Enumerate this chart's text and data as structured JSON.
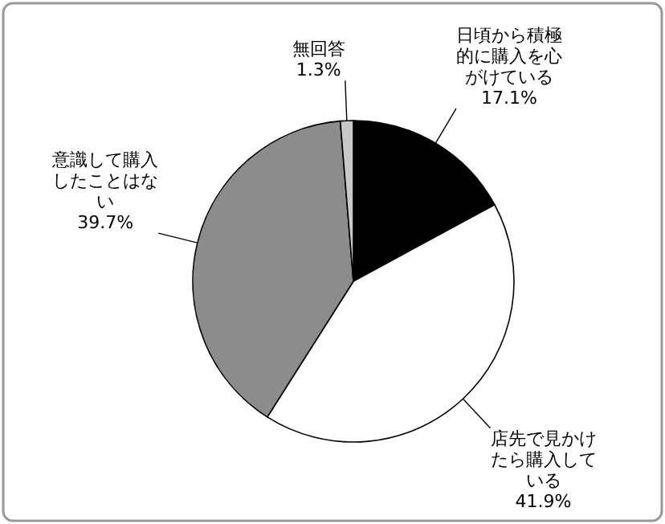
{
  "chart_data": {
    "type": "pie",
    "categories": [
      "日頃から積極的に購入を心がけている",
      "店先で見かけたら購入している",
      "意識して購入したことはない",
      "無回答"
    ],
    "values": [
      17.1,
      41.9,
      39.7,
      1.3
    ],
    "value_labels": [
      "17.1%",
      "41.9%",
      "39.7%",
      "1.3%"
    ],
    "colors": [
      "#000000",
      "#ffffff",
      "#8c8c8c",
      "#c8c8c8"
    ]
  }
}
